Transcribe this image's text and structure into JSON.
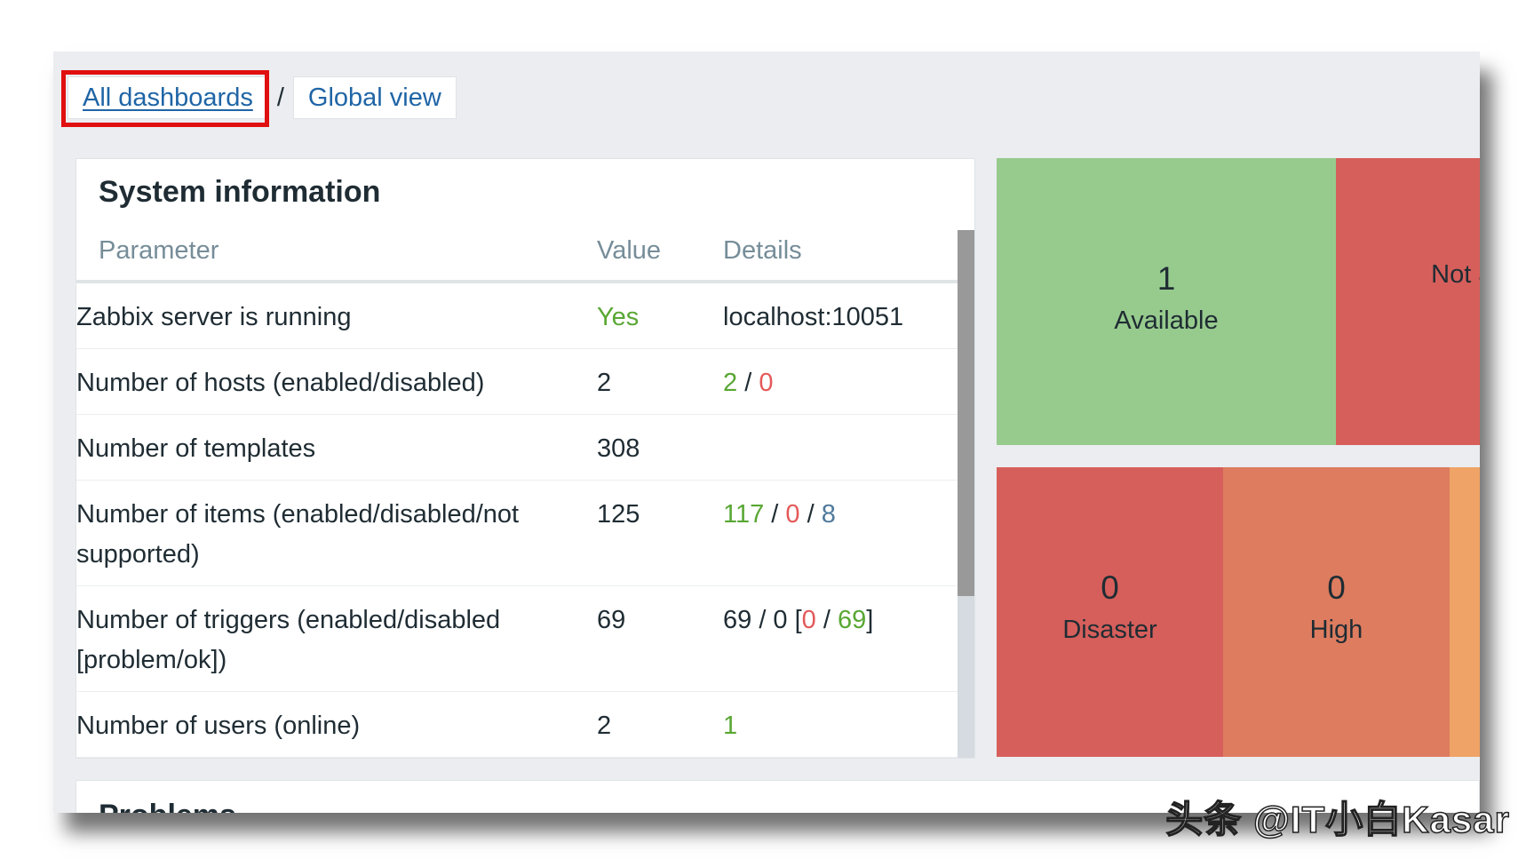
{
  "breadcrumb": {
    "all_dashboards": "All dashboards",
    "separator": "/",
    "current": "Global view"
  },
  "system_info": {
    "title": "System information",
    "headers": {
      "parameter": "Parameter",
      "value": "Value",
      "details": "Details"
    },
    "rows": [
      {
        "parameter": "Zabbix server is running",
        "value": "Yes",
        "details": "localhost:10051"
      },
      {
        "parameter": "Number of hosts (enabled/disabled)",
        "value": "2",
        "details_enabled": "2",
        "sep1": " / ",
        "details_disabled": "0"
      },
      {
        "parameter": "Number of templates",
        "value": "308"
      },
      {
        "parameter": "Number of items (enabled/disabled/not supported)",
        "value": "125",
        "details_enabled": "117",
        "sep1": " / ",
        "details_disabled": "0",
        "sep2": " / ",
        "details_notsupported": "8"
      },
      {
        "parameter": "Number of triggers (enabled/disabled [problem/ok])",
        "value": "69",
        "details_prefix": "69 / 0 [",
        "details_problem": "0",
        "sep1": " / ",
        "details_ok": "69",
        "details_suffix": "]"
      },
      {
        "parameter": "Number of users (online)",
        "value": "2",
        "details_online": "1"
      }
    ]
  },
  "host_availability": {
    "tiles": [
      {
        "count": "1",
        "label": "Available",
        "color": "#97cb8e"
      },
      {
        "count": "",
        "label": "Not available",
        "color": "#d65f5b"
      }
    ]
  },
  "problems_by_severity": {
    "tiles": [
      {
        "count": "0",
        "label": "Disaster",
        "color": "#d65f5b"
      },
      {
        "count": "0",
        "label": "High",
        "color": "#dd7c5f"
      },
      {
        "count": "",
        "label": "",
        "color": "#efa366"
      }
    ]
  },
  "problems": {
    "title": "Problems"
  },
  "watermark": "头条 @IT小白Kasar"
}
